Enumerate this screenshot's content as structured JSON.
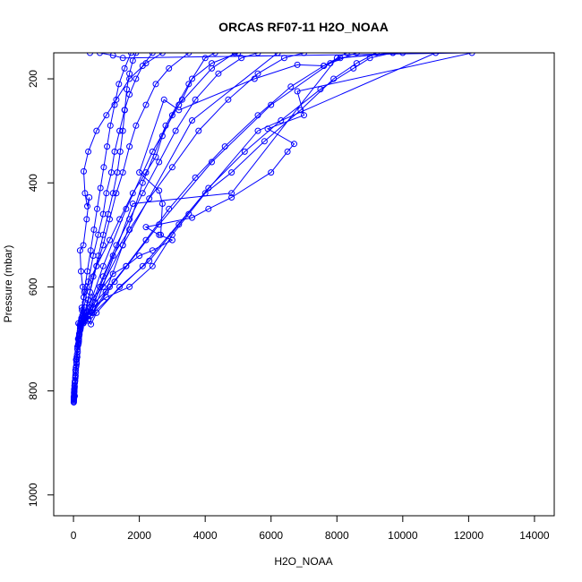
{
  "chart_data": {
    "type": "line",
    "title": "ORCAS RF07-11 H2O_NOAA",
    "xlabel": "H2O_NOAA",
    "ylabel": "Pressure (mbar)",
    "xlim": [
      -600,
      14600
    ],
    "ylim": [
      150,
      1040
    ],
    "y_reversed": true,
    "x_ticks": [
      0,
      2000,
      4000,
      6000,
      8000,
      10000,
      12000,
      14000
    ],
    "y_ticks": [
      200,
      400,
      600,
      800,
      1000
    ],
    "series_color": "#0000ff",
    "marker": "open-circle",
    "series": [
      {
        "points": [
          [
            10,
            820
          ],
          [
            30,
            790
          ],
          [
            60,
            760
          ],
          [
            120,
            715
          ],
          [
            200,
            680
          ],
          [
            320,
            650
          ],
          [
            600,
            620
          ],
          [
            900,
            600
          ],
          [
            1200,
            575
          ],
          [
            1600,
            560
          ],
          [
            2000,
            540
          ],
          [
            2400,
            530
          ],
          [
            3000,
            510
          ],
          [
            2600,
            500
          ],
          [
            2200,
            485
          ],
          [
            3600,
            467
          ],
          [
            4100,
            450
          ],
          [
            4800,
            428
          ],
          [
            6000,
            380
          ],
          [
            6500,
            340
          ],
          [
            6700,
            325
          ],
          [
            5900,
            296
          ],
          [
            7000,
            270
          ],
          [
            6800,
            224
          ],
          [
            12100,
            150
          ],
          [
            1500,
            160
          ],
          [
            1200,
            155
          ],
          [
            800,
            150
          ],
          [
            500,
            150
          ]
        ]
      },
      {
        "points": [
          [
            20,
            805
          ],
          [
            80,
            740
          ],
          [
            150,
            670
          ],
          [
            250,
            640
          ],
          [
            400,
            600
          ],
          [
            700,
            560
          ],
          [
            1100,
            510
          ],
          [
            1400,
            470
          ],
          [
            1800,
            420
          ],
          [
            2200,
            380
          ],
          [
            2500,
            350
          ],
          [
            2700,
            310
          ],
          [
            3000,
            270
          ],
          [
            3300,
            240
          ],
          [
            3600,
            200
          ],
          [
            4200,
            170
          ],
          [
            5000,
            150
          ],
          [
            9700,
            150
          ],
          [
            8100,
            160
          ],
          [
            7600,
            175
          ],
          [
            6800,
            173
          ],
          [
            5500,
            200
          ],
          [
            3200,
            260
          ],
          [
            2750,
            240
          ],
          [
            2000,
            380
          ],
          [
            2600,
            415
          ],
          [
            2700,
            440
          ],
          [
            2650,
            500
          ]
        ]
      },
      {
        "points": [
          [
            40,
            810
          ],
          [
            120,
            720
          ],
          [
            300,
            660
          ],
          [
            600,
            640
          ],
          [
            1000,
            620
          ],
          [
            1700,
            600
          ],
          [
            2400,
            560
          ],
          [
            3000,
            500
          ],
          [
            3500,
            460
          ],
          [
            4000,
            420
          ],
          [
            4800,
            380
          ],
          [
            5800,
            320
          ],
          [
            6900,
            260
          ],
          [
            7900,
            200
          ],
          [
            8600,
            170
          ],
          [
            9200,
            150
          ]
        ]
      },
      {
        "points": [
          [
            15,
            815
          ],
          [
            60,
            770
          ],
          [
            150,
            700
          ],
          [
            240,
            660
          ],
          [
            450,
            665
          ],
          [
            530,
            672
          ],
          [
            700,
            650
          ],
          [
            1400,
            600
          ],
          [
            2300,
            550
          ],
          [
            3200,
            480
          ],
          [
            4100,
            410
          ],
          [
            5200,
            340
          ],
          [
            6300,
            280
          ],
          [
            7500,
            220
          ],
          [
            8500,
            180
          ],
          [
            9000,
            160
          ],
          [
            9700,
            150
          ]
        ]
      },
      {
        "points": [
          [
            25,
            800
          ],
          [
            100,
            740
          ],
          [
            180,
            690
          ],
          [
            300,
            670
          ],
          [
            500,
            640
          ],
          [
            900,
            580
          ],
          [
            1300,
            520
          ],
          [
            1700,
            470
          ],
          [
            2100,
            420
          ],
          [
            2600,
            360
          ],
          [
            3100,
            300
          ],
          [
            3700,
            240
          ],
          [
            4400,
            190
          ],
          [
            5100,
            160
          ],
          [
            5600,
            150
          ]
        ]
      },
      {
        "points": [
          [
            10,
            812
          ],
          [
            70,
            760
          ],
          [
            160,
            705
          ],
          [
            260,
            668
          ],
          [
            380,
            650
          ],
          [
            500,
            610
          ],
          [
            700,
            560
          ],
          [
            900,
            520
          ],
          [
            1100,
            470
          ],
          [
            1300,
            420
          ],
          [
            1500,
            380
          ],
          [
            1700,
            330
          ],
          [
            1900,
            290
          ],
          [
            2200,
            250
          ],
          [
            2500,
            210
          ],
          [
            2900,
            180
          ],
          [
            3500,
            150
          ]
        ]
      },
      {
        "points": [
          [
            30,
            795
          ],
          [
            90,
            745
          ],
          [
            170,
            695
          ],
          [
            230,
            665
          ],
          [
            350,
            630
          ],
          [
            450,
            590
          ],
          [
            600,
            540
          ],
          [
            750,
            500
          ],
          [
            900,
            460
          ],
          [
            1000,
            420
          ],
          [
            1150,
            380
          ],
          [
            1250,
            340
          ],
          [
            1400,
            300
          ],
          [
            1550,
            260
          ],
          [
            1700,
            230
          ],
          [
            1900,
            200
          ],
          [
            2100,
            175
          ],
          [
            2400,
            150
          ]
        ]
      },
      {
        "points": [
          [
            20,
            808
          ],
          [
            50,
            780
          ],
          [
            90,
            740
          ],
          [
            140,
            700
          ],
          [
            190,
            672
          ],
          [
            260,
            645
          ],
          [
            330,
            610
          ],
          [
            420,
            570
          ],
          [
            520,
            530
          ],
          [
            620,
            490
          ],
          [
            720,
            450
          ],
          [
            820,
            410
          ],
          [
            920,
            370
          ],
          [
            1020,
            330
          ],
          [
            1120,
            290
          ],
          [
            1250,
            250
          ],
          [
            1380,
            210
          ],
          [
            1550,
            180
          ],
          [
            1750,
            150
          ]
        ]
      },
      {
        "points": [
          [
            12,
            818
          ],
          [
            40,
            785
          ],
          [
            110,
            730
          ],
          [
            200,
            675
          ],
          [
            270,
            655
          ],
          [
            310,
            620
          ],
          [
            280,
            600
          ],
          [
            230,
            570
          ],
          [
            200,
            530
          ],
          [
            300,
            520
          ],
          [
            400,
            470
          ],
          [
            480,
            428
          ],
          [
            420,
            445
          ],
          [
            350,
            420
          ],
          [
            310,
            378
          ],
          [
            450,
            340
          ],
          [
            700,
            300
          ],
          [
            1000,
            270
          ],
          [
            1300,
            240
          ],
          [
            1700,
            200
          ],
          [
            2200,
            170
          ],
          [
            2700,
            150
          ]
        ]
      },
      {
        "points": [
          [
            18,
            803
          ],
          [
            75,
            755
          ],
          [
            165,
            700
          ],
          [
            290,
            667
          ],
          [
            520,
            655
          ],
          [
            800,
            600
          ],
          [
            1200,
            540
          ],
          [
            1700,
            490
          ],
          [
            2300,
            430
          ],
          [
            3000,
            370
          ],
          [
            3800,
            300
          ],
          [
            4700,
            240
          ],
          [
            5600,
            190
          ],
          [
            6400,
            160
          ],
          [
            7000,
            150
          ]
        ]
      },
      {
        "points": [
          [
            22,
            798
          ],
          [
            95,
            748
          ],
          [
            175,
            690
          ],
          [
            320,
            660
          ],
          [
            650,
            630
          ],
          [
            1100,
            600
          ],
          [
            1600,
            560
          ],
          [
            2200,
            510
          ],
          [
            2900,
            450
          ],
          [
            3700,
            390
          ],
          [
            4600,
            330
          ],
          [
            5600,
            270
          ],
          [
            6600,
            215
          ],
          [
            7600,
            175
          ],
          [
            8300,
            150
          ]
        ]
      },
      {
        "points": [
          [
            35,
            792
          ],
          [
            130,
            725
          ],
          [
            210,
            682
          ],
          [
            360,
            655
          ],
          [
            600,
            650
          ],
          [
            1800,
            440
          ],
          [
            4800,
            420
          ],
          [
            8000,
            160
          ],
          [
            10000,
            150
          ]
        ]
      },
      {
        "points": [
          [
            8,
            822
          ],
          [
            55,
            775
          ],
          [
            140,
            712
          ],
          [
            220,
            678
          ],
          [
            420,
            648
          ],
          [
            900,
            560
          ],
          [
            1600,
            450
          ],
          [
            2400,
            340
          ],
          [
            3200,
            250
          ],
          [
            4200,
            180
          ],
          [
            4900,
            150
          ]
        ]
      },
      {
        "points": [
          [
            28,
            796
          ],
          [
            115,
            735
          ],
          [
            195,
            685
          ],
          [
            340,
            658
          ],
          [
            560,
            650
          ],
          [
            980,
            610
          ],
          [
            1500,
            520
          ],
          [
            2100,
            400
          ],
          [
            2800,
            290
          ],
          [
            3500,
            210
          ],
          [
            4000,
            160
          ],
          [
            4300,
            150
          ]
        ]
      },
      {
        "points": [
          [
            14,
            814
          ],
          [
            65,
            765
          ],
          [
            155,
            708
          ],
          [
            240,
            672
          ],
          [
            460,
            662
          ],
          [
            1250,
            590
          ],
          [
            2600,
            480
          ],
          [
            4200,
            360
          ],
          [
            6000,
            250
          ],
          [
            7800,
            170
          ],
          [
            8600,
            150
          ]
        ]
      },
      {
        "points": [
          [
            10,
            816
          ],
          [
            45,
            782
          ],
          [
            100,
            735
          ],
          [
            180,
            692
          ],
          [
            300,
            660
          ],
          [
            440,
            625
          ],
          [
            600,
            580
          ],
          [
            760,
            540
          ],
          [
            900,
            500
          ],
          [
            1050,
            460
          ],
          [
            1200,
            420
          ],
          [
            1330,
            380
          ],
          [
            1420,
            340
          ],
          [
            1500,
            300
          ],
          [
            1560,
            260
          ],
          [
            1620,
            220
          ],
          [
            1700,
            190
          ],
          [
            1800,
            165
          ],
          [
            1900,
            150
          ]
        ]
      },
      {
        "points": [
          [
            26,
            802
          ],
          [
            85,
            752
          ],
          [
            160,
            702
          ],
          [
            250,
            665
          ],
          [
            380,
            658
          ],
          [
            1500,
            520
          ],
          [
            3600,
            280
          ],
          [
            6200,
            150
          ]
        ]
      },
      {
        "points": [
          [
            16,
            810
          ],
          [
            60,
            772
          ],
          [
            145,
            710
          ],
          [
            215,
            676
          ],
          [
            330,
            667
          ],
          [
            2100,
            560
          ],
          [
            5600,
            300
          ],
          [
            11000,
            150
          ]
        ]
      }
    ]
  }
}
